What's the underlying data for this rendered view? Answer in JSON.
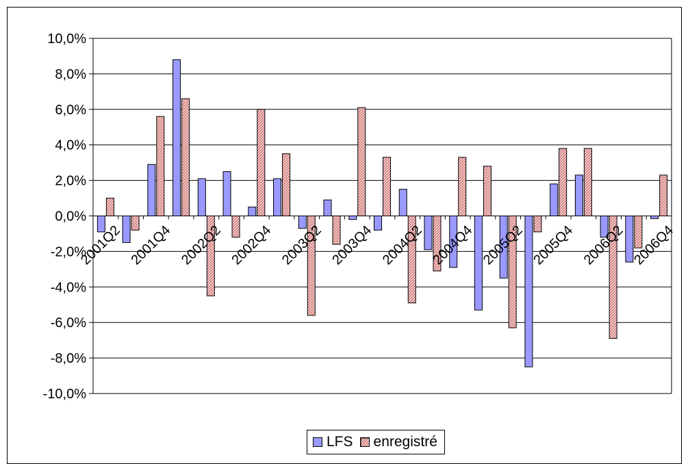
{
  "chart_data": {
    "type": "bar",
    "title": "",
    "xlabel": "",
    "ylabel": "",
    "ylim": [
      -10,
      10
    ],
    "y_ticks": [
      "10,0%",
      "8,0%",
      "6,0%",
      "4,0%",
      "2,0%",
      "0,0%",
      "-2,0%",
      "-4,0%",
      "-6,0%",
      "-8,0%",
      "-10,0%"
    ],
    "y_tick_values": [
      10,
      8,
      6,
      4,
      2,
      0,
      -2,
      -4,
      -6,
      -8,
      -10
    ],
    "grid": true,
    "legend_position": "bottom",
    "categories": [
      "2001Q2",
      "2001Q3",
      "2001Q4",
      "2002Q1",
      "2002Q2",
      "2002Q3",
      "2002Q4",
      "2003Q1",
      "2003Q2",
      "2003Q3",
      "2003Q4",
      "2004Q1",
      "2004Q2",
      "2004Q3",
      "2004Q4",
      "2005Q1",
      "2005Q2",
      "2005Q3",
      "2005Q4",
      "2006Q1",
      "2006Q2",
      "2006Q3",
      "2006Q4"
    ],
    "category_labels_shown": [
      "2001Q2",
      "2001Q4",
      "2002Q2",
      "2002Q4",
      "2003Q2",
      "2003Q4",
      "2004Q2",
      "2004Q4",
      "2005Q2",
      "2005Q4",
      "2006Q2",
      "2006Q4"
    ],
    "series": [
      {
        "name": "LFS",
        "color": "#9999ff",
        "pattern": "solid",
        "values": [
          -0.9,
          -1.5,
          2.9,
          8.8,
          2.1,
          2.5,
          0.5,
          2.1,
          -0.7,
          0.9,
          -0.2,
          -0.8,
          1.5,
          -1.9,
          -2.9,
          -5.3,
          -3.5,
          -8.5,
          1.8,
          2.3,
          -1.2,
          -2.6,
          -0.15
        ]
      },
      {
        "name": "enregistré",
        "color": "#ffcccc",
        "pattern": "diagonal-hatch",
        "values": [
          1.0,
          -0.8,
          5.6,
          6.6,
          -4.5,
          -1.2,
          6.0,
          3.5,
          -5.6,
          -1.6,
          6.1,
          3.3,
          -4.9,
          -3.1,
          3.3,
          2.8,
          -6.3,
          -0.9,
          3.8,
          3.8,
          -6.9,
          -1.8,
          2.3
        ]
      }
    ]
  }
}
